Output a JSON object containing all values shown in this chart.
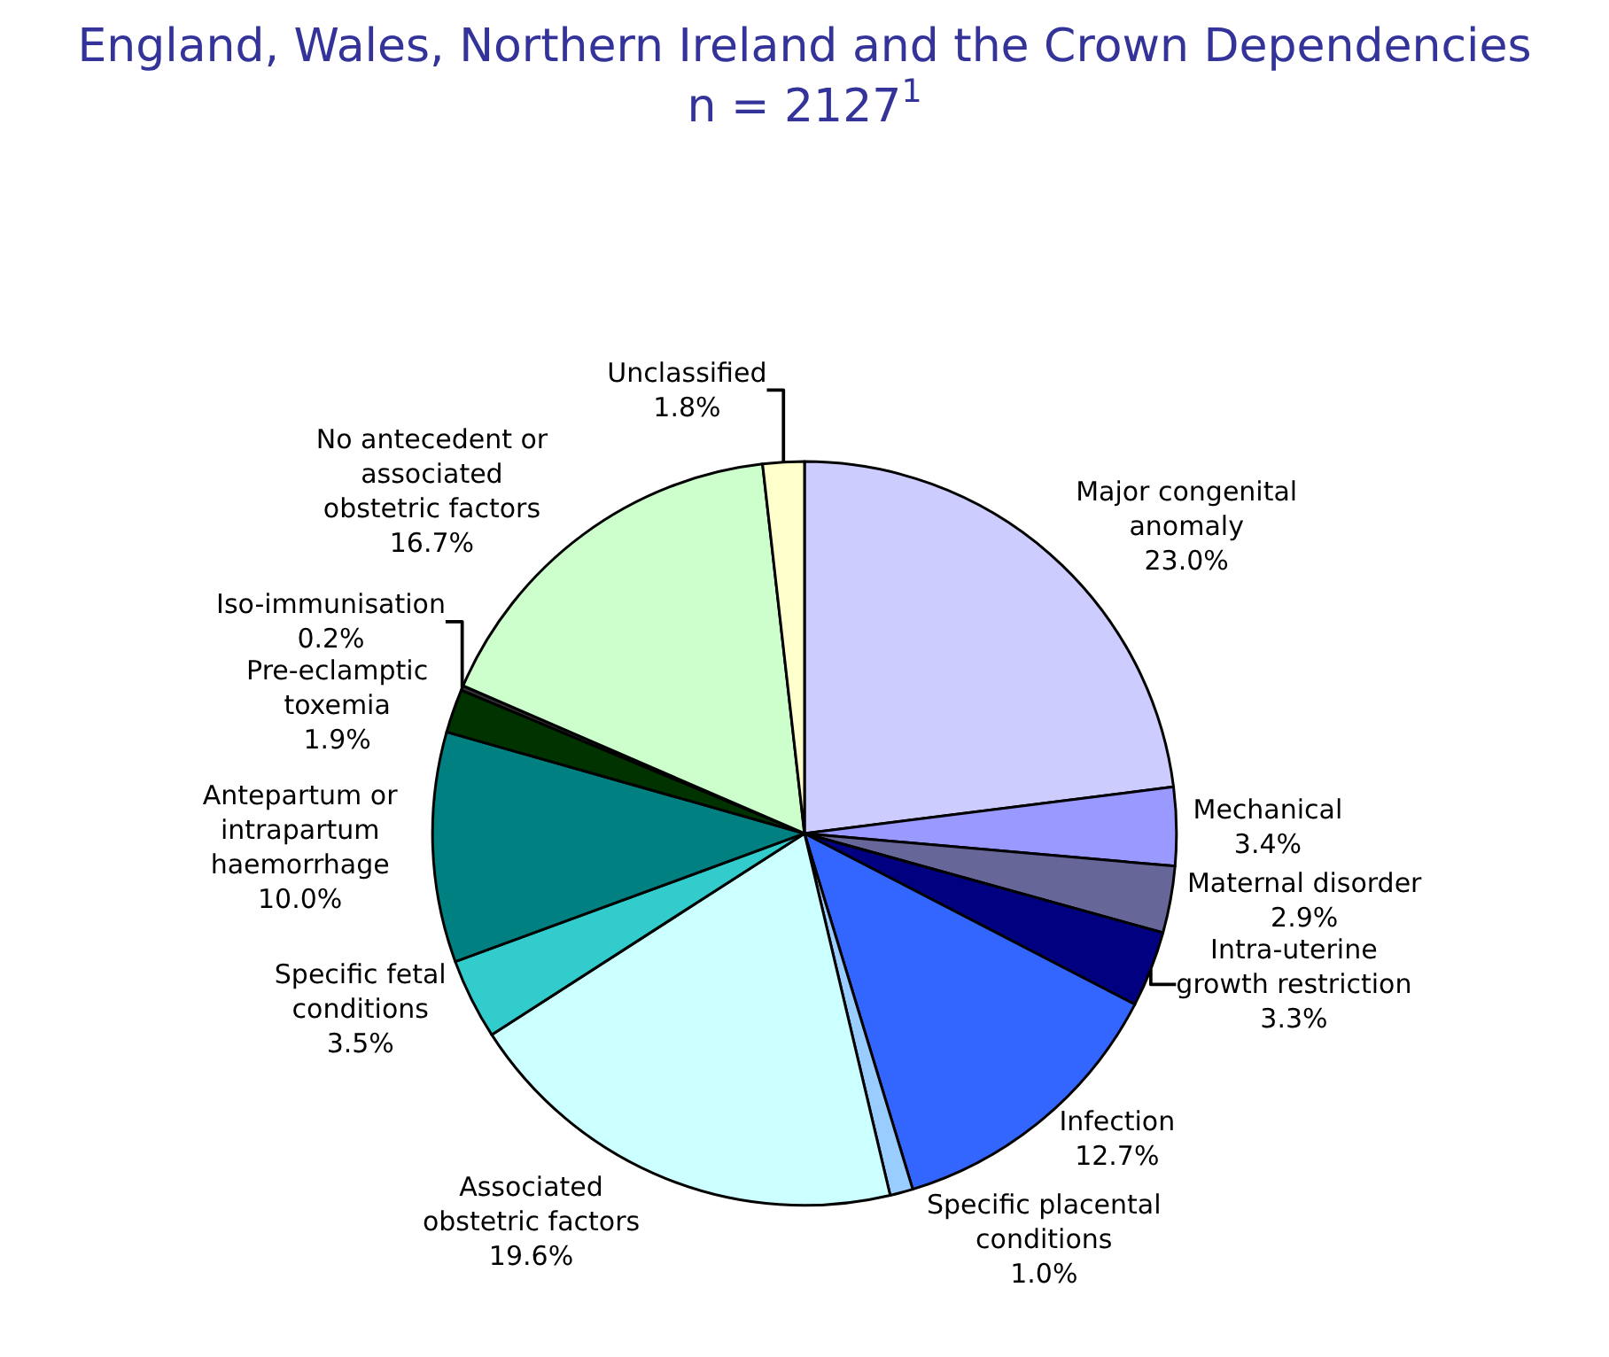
{
  "chart_data": {
    "type": "pie",
    "title": "England, Wales, Northern Ireland and the Crown Dependencies\nn = 2127$^{1}$",
    "categories": [
      "Major congenital\nanomaly",
      "Mechanical",
      "Maternal disorder",
      "Intra-uterine\ngrowth restriction",
      "Infection",
      "Specific placental\nconditions",
      "Associated\nobstetric factors",
      "Specific fetal\nconditions",
      "Antepartum or\nintrapartum\nhaemorrhage",
      "Pre-eclamptic\ntoxemia",
      "Iso-immunisation",
      "No antecedent or\nassociated\nobstetric factors",
      "Unclassified"
    ],
    "values": [
      23.0,
      3.4,
      2.9,
      3.3,
      12.7,
      1.0,
      19.6,
      3.5,
      10.0,
      1.9,
      0.2,
      16.7,
      1.8
    ],
    "value_labels": [
      "23.0%",
      "3.4%",
      "2.9%",
      "3.3%",
      "12.7%",
      "1.0%",
      "19.6%",
      "3.5%",
      "10.0%",
      "1.9%",
      "0.2%",
      "16.7%",
      "1.8%"
    ],
    "colors": [
      "#ccccff",
      "#9999ff",
      "#666699",
      "#000080",
      "#3366ff",
      "#99ccff",
      "#ccffff",
      "#33cccc",
      "#008080",
      "#003300",
      "#333333",
      "#ccffcc",
      "#ffffcc"
    ],
    "legend": false
  }
}
